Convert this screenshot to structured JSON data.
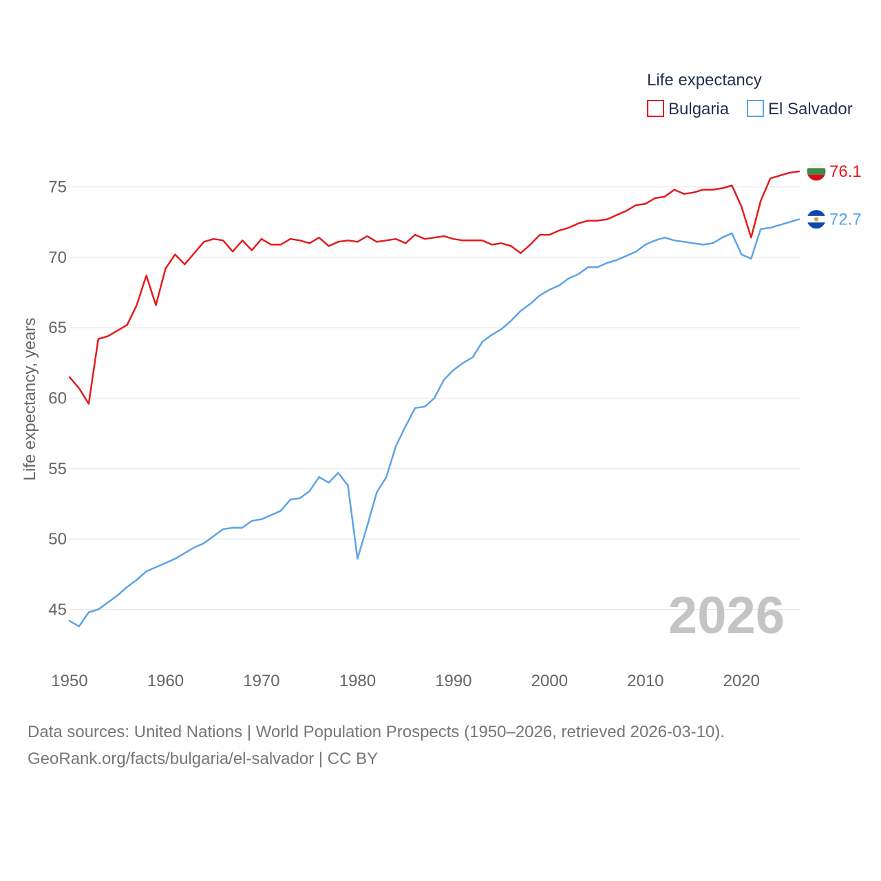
{
  "chart_data": {
    "type": "line",
    "title": "",
    "xlabel": "",
    "ylabel": "Life expectancy, years",
    "xlim": [
      1950,
      2026
    ],
    "ylim": [
      42,
      78
    ],
    "y_ticks": [
      45,
      50,
      55,
      60,
      65,
      70,
      75
    ],
    "x_ticks": [
      1950,
      1960,
      1970,
      1980,
      1990,
      2000,
      2010,
      2020
    ],
    "grid": true,
    "legend": {
      "title": "Life expectancy",
      "placement": "top-right"
    },
    "watermark_year": "2026",
    "x": [
      1950,
      1951,
      1952,
      1953,
      1954,
      1955,
      1956,
      1957,
      1958,
      1959,
      1960,
      1961,
      1962,
      1963,
      1964,
      1965,
      1966,
      1967,
      1968,
      1969,
      1970,
      1971,
      1972,
      1973,
      1974,
      1975,
      1976,
      1977,
      1978,
      1979,
      1980,
      1981,
      1982,
      1983,
      1984,
      1985,
      1986,
      1987,
      1988,
      1989,
      1990,
      1991,
      1992,
      1993,
      1994,
      1995,
      1996,
      1997,
      1998,
      1999,
      2000,
      2001,
      2002,
      2003,
      2004,
      2005,
      2006,
      2007,
      2008,
      2009,
      2010,
      2011,
      2012,
      2013,
      2014,
      2015,
      2016,
      2017,
      2018,
      2019,
      2020,
      2021,
      2022,
      2023,
      2024,
      2025,
      2026
    ],
    "series": [
      {
        "name": "Bulgaria",
        "color": "#e41a1c",
        "end_label": "76.1",
        "flag": "bulgaria-flag",
        "values": [
          61.5,
          60.7,
          59.6,
          64.2,
          64.4,
          64.8,
          65.2,
          66.6,
          68.7,
          66.6,
          69.2,
          70.2,
          69.5,
          70.3,
          71.1,
          71.3,
          71.2,
          70.4,
          71.2,
          70.5,
          71.3,
          70.9,
          70.9,
          71.3,
          71.2,
          71.0,
          71.4,
          70.8,
          71.1,
          71.2,
          71.1,
          71.5,
          71.1,
          71.2,
          71.3,
          71.0,
          71.6,
          71.3,
          71.4,
          71.5,
          71.3,
          71.2,
          71.2,
          71.2,
          70.9,
          71.0,
          70.8,
          70.3,
          70.9,
          71.6,
          71.6,
          71.9,
          72.1,
          72.4,
          72.6,
          72.6,
          72.7,
          73.0,
          73.3,
          73.7,
          73.8,
          74.2,
          74.3,
          74.8,
          74.5,
          74.6,
          74.8,
          74.8,
          74.9,
          75.1,
          73.6,
          71.4,
          74.0,
          75.6,
          75.8,
          76.0,
          76.1
        ]
      },
      {
        "name": "El Salvador",
        "color": "#5ba3e6",
        "end_label": "72.7",
        "flag": "el-salvador-flag",
        "values": [
          44.2,
          43.8,
          44.8,
          45.0,
          45.5,
          46.0,
          46.6,
          47.1,
          47.7,
          48.0,
          48.3,
          48.6,
          49.0,
          49.4,
          49.7,
          50.2,
          50.7,
          50.8,
          50.8,
          51.3,
          51.4,
          51.7,
          52.0,
          52.8,
          52.9,
          53.4,
          54.4,
          54.0,
          54.7,
          53.8,
          48.6,
          50.9,
          53.3,
          54.4,
          56.6,
          58.0,
          59.3,
          59.4,
          60.0,
          61.3,
          62.0,
          62.5,
          62.9,
          64.0,
          64.5,
          64.9,
          65.5,
          66.2,
          66.7,
          67.3,
          67.7,
          68.0,
          68.5,
          68.8,
          69.3,
          69.3,
          69.6,
          69.8,
          70.1,
          70.4,
          70.9,
          71.2,
          71.4,
          71.2,
          71.1,
          71.0,
          70.9,
          71.0,
          71.4,
          71.7,
          70.2,
          69.9,
          72.0,
          72.1,
          72.3,
          72.5,
          72.7
        ]
      }
    ]
  },
  "source": {
    "line1": "Data sources: United Nations | World Population Prospects (1950–2026, retrieved 2026-03-10).",
    "line2": "GeoRank.org/facts/bulgaria/el-salvador | CC BY"
  }
}
